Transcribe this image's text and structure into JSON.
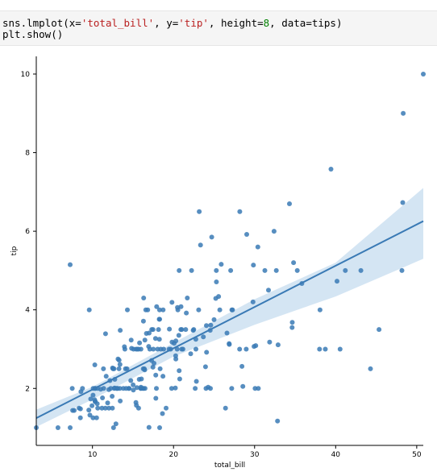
{
  "code_cell": {
    "line1": {
      "p1": "sns.lmplot(x=",
      "s1": "'total_bill'",
      "p2": ", y=",
      "s2": "'tip'",
      "p3": ", height=",
      "n1": "8",
      "p4": ", data=tips)"
    },
    "line2": "plt.show()"
  },
  "chart_data": {
    "type": "scatter",
    "xlabel": "total_bill",
    "ylabel": "tip",
    "xlim": [
      3.07,
      50.81
    ],
    "ylim": [
      0.55,
      10.45
    ],
    "xticks": [
      10,
      20,
      30,
      40,
      50
    ],
    "yticks": [
      2,
      4,
      6,
      8,
      10
    ],
    "grid": false,
    "colors": {
      "points": "#3a7ab5",
      "line": "#3a7ab5",
      "band": "#c6dcef"
    },
    "regression": {
      "x": [
        3.07,
        50.81
      ],
      "y": [
        1.245,
        6.257
      ]
    },
    "ci_band": {
      "x": [
        3.07,
        10,
        20,
        30,
        40,
        50.81
      ],
      "lower": [
        1.02,
        1.72,
        2.81,
        3.62,
        4.34,
        5.3
      ],
      "upper": [
        1.46,
        2.04,
        3.16,
        4.27,
        5.2,
        7.1
      ]
    },
    "points": [
      [
        3.07,
        1.0
      ],
      [
        5.75,
        1.0
      ],
      [
        7.25,
        1.0
      ],
      [
        7.25,
        5.15
      ],
      [
        7.51,
        2.0
      ],
      [
        7.56,
        1.44
      ],
      [
        7.74,
        1.44
      ],
      [
        8.35,
        1.5
      ],
      [
        8.51,
        1.25
      ],
      [
        8.52,
        1.48
      ],
      [
        8.58,
        1.92
      ],
      [
        8.77,
        2.0
      ],
      [
        9.55,
        1.45
      ],
      [
        9.6,
        4.0
      ],
      [
        9.68,
        1.32
      ],
      [
        9.78,
        1.73
      ],
      [
        9.94,
        1.56
      ],
      [
        10.07,
        1.25
      ],
      [
        10.07,
        1.83
      ],
      [
        10.09,
        2.0
      ],
      [
        10.27,
        1.71
      ],
      [
        10.29,
        2.6
      ],
      [
        10.33,
        1.67
      ],
      [
        10.33,
        2.0
      ],
      [
        10.34,
        1.66
      ],
      [
        10.34,
        2.0
      ],
      [
        10.51,
        1.25
      ],
      [
        10.59,
        1.61
      ],
      [
        10.63,
        2.0
      ],
      [
        10.65,
        1.5
      ],
      [
        11.02,
        1.98
      ],
      [
        11.17,
        1.5
      ],
      [
        11.24,
        1.76
      ],
      [
        11.35,
        2.5
      ],
      [
        11.38,
        2.0
      ],
      [
        11.59,
        1.5
      ],
      [
        11.61,
        3.39
      ],
      [
        11.69,
        2.31
      ],
      [
        11.87,
        1.63
      ],
      [
        12.02,
        1.97
      ],
      [
        12.03,
        1.5
      ],
      [
        12.16,
        2.2
      ],
      [
        12.26,
        2.0
      ],
      [
        12.43,
        1.8
      ],
      [
        12.46,
        1.5
      ],
      [
        12.48,
        2.52
      ],
      [
        12.54,
        2.5
      ],
      [
        12.6,
        1.0
      ],
      [
        12.66,
        2.5
      ],
      [
        12.69,
        2.0
      ],
      [
        12.74,
        2.01
      ],
      [
        12.76,
        2.23
      ],
      [
        12.9,
        1.1
      ],
      [
        13.0,
        2.0
      ],
      [
        13.03,
        2.0
      ],
      [
        13.13,
        2.0
      ],
      [
        13.16,
        2.75
      ],
      [
        13.27,
        2.5
      ],
      [
        13.28,
        2.72
      ],
      [
        13.37,
        2.0
      ],
      [
        13.39,
        2.61
      ],
      [
        13.42,
        1.68
      ],
      [
        13.42,
        3.48
      ],
      [
        13.81,
        2.0
      ],
      [
        13.94,
        3.06
      ],
      [
        14.0,
        3.0
      ],
      [
        14.07,
        2.5
      ],
      [
        14.15,
        2.0
      ],
      [
        14.26,
        2.5
      ],
      [
        14.31,
        4.0
      ],
      [
        14.48,
        2.0
      ],
      [
        14.52,
        2.0
      ],
      [
        14.73,
        2.2
      ],
      [
        14.78,
        3.23
      ],
      [
        14.83,
        3.02
      ],
      [
        15.01,
        2.09
      ],
      [
        15.04,
        1.96
      ],
      [
        15.06,
        3.0
      ],
      [
        15.36,
        1.64
      ],
      [
        15.38,
        3.0
      ],
      [
        15.42,
        1.57
      ],
      [
        15.48,
        2.02
      ],
      [
        15.53,
        3.0
      ],
      [
        15.69,
        1.5
      ],
      [
        15.69,
        3.0
      ],
      [
        15.77,
        2.23
      ],
      [
        15.81,
        3.16
      ],
      [
        15.95,
        2.0
      ],
      [
        15.98,
        2.03
      ],
      [
        15.98,
        3.0
      ],
      [
        16.0,
        2.0
      ],
      [
        16.04,
        2.24
      ],
      [
        16.21,
        2.0
      ],
      [
        16.27,
        2.5
      ],
      [
        16.29,
        3.71
      ],
      [
        16.31,
        2.0
      ],
      [
        16.32,
        4.3
      ],
      [
        16.4,
        2.5
      ],
      [
        16.45,
        2.47
      ],
      [
        16.47,
        3.23
      ],
      [
        16.49,
        2.0
      ],
      [
        16.58,
        4.0
      ],
      [
        16.66,
        3.4
      ],
      [
        16.82,
        4.0
      ],
      [
        16.93,
        3.07
      ],
      [
        16.97,
        1.01
      ],
      [
        16.99,
        3.41
      ],
      [
        17.07,
        3.0
      ],
      [
        17.29,
        2.71
      ],
      [
        17.31,
        3.5
      ],
      [
        17.46,
        2.54
      ],
      [
        17.47,
        3.5
      ],
      [
        17.51,
        3.0
      ],
      [
        17.59,
        2.64
      ],
      [
        17.78,
        3.27
      ],
      [
        17.81,
        2.34
      ],
      [
        17.82,
        1.75
      ],
      [
        17.89,
        2.0
      ],
      [
        17.92,
        4.08
      ],
      [
        18.04,
        3.0
      ],
      [
        18.15,
        3.5
      ],
      [
        18.24,
        3.76
      ],
      [
        18.26,
        3.25
      ],
      [
        18.28,
        4.0
      ],
      [
        18.29,
        3.76
      ],
      [
        18.29,
        1.0
      ],
      [
        18.35,
        2.5
      ],
      [
        18.43,
        3.0
      ],
      [
        18.64,
        1.36
      ],
      [
        18.69,
        2.31
      ],
      [
        18.71,
        4.0
      ],
      [
        18.78,
        3.0
      ],
      [
        19.08,
        1.5
      ],
      [
        19.44,
        3.0
      ],
      [
        19.49,
        3.51
      ],
      [
        19.65,
        3.0
      ],
      [
        19.77,
        2.0
      ],
      [
        19.81,
        4.19
      ],
      [
        19.82,
        3.18
      ],
      [
        20.08,
        3.15
      ],
      [
        20.23,
        2.01
      ],
      [
        20.27,
        2.83
      ],
      [
        20.29,
        2.75
      ],
      [
        20.29,
        3.21
      ],
      [
        20.45,
        3.0
      ],
      [
        20.49,
        4.06
      ],
      [
        20.53,
        4.0
      ],
      [
        20.65,
        3.35
      ],
      [
        20.69,
        5.0
      ],
      [
        20.69,
        2.45
      ],
      [
        20.76,
        2.24
      ],
      [
        20.9,
        3.5
      ],
      [
        20.92,
        4.08
      ],
      [
        21.01,
        3.5
      ],
      [
        21.01,
        3.0
      ],
      [
        21.16,
        3.0
      ],
      [
        21.5,
        3.5
      ],
      [
        21.58,
        3.92
      ],
      [
        21.7,
        4.3
      ],
      [
        22.12,
        2.88
      ],
      [
        22.23,
        5.0
      ],
      [
        22.42,
        3.48
      ],
      [
        22.49,
        3.5
      ],
      [
        22.67,
        2.0
      ],
      [
        22.75,
        3.25
      ],
      [
        22.76,
        3.0
      ],
      [
        22.82,
        2.18
      ],
      [
        23.1,
        4.0
      ],
      [
        23.17,
        6.5
      ],
      [
        23.33,
        5.65
      ],
      [
        23.68,
        3.31
      ],
      [
        23.95,
        2.55
      ],
      [
        24.01,
        2.0
      ],
      [
        24.06,
        3.6
      ],
      [
        24.08,
        2.92
      ],
      [
        24.27,
        2.03
      ],
      [
        24.52,
        3.48
      ],
      [
        24.55,
        2.0
      ],
      [
        24.59,
        3.61
      ],
      [
        24.71,
        5.85
      ],
      [
        25.0,
        3.75
      ],
      [
        25.21,
        4.29
      ],
      [
        25.28,
        5.0
      ],
      [
        25.29,
        4.71
      ],
      [
        25.56,
        4.34
      ],
      [
        25.71,
        4.0
      ],
      [
        25.89,
        5.16
      ],
      [
        26.41,
        1.5
      ],
      [
        26.59,
        3.41
      ],
      [
        26.86,
        3.14
      ],
      [
        26.88,
        3.12
      ],
      [
        27.05,
        5.0
      ],
      [
        27.18,
        2.0
      ],
      [
        27.2,
        4.0
      ],
      [
        27.28,
        4.0
      ],
      [
        28.15,
        3.0
      ],
      [
        28.17,
        6.5
      ],
      [
        28.44,
        2.56
      ],
      [
        28.55,
        2.05
      ],
      [
        28.97,
        3.0
      ],
      [
        29.03,
        5.92
      ],
      [
        29.8,
        4.2
      ],
      [
        29.85,
        5.14
      ],
      [
        29.93,
        3.07
      ],
      [
        30.06,
        2.0
      ],
      [
        30.14,
        3.09
      ],
      [
        30.4,
        5.6
      ],
      [
        30.46,
        2.0
      ],
      [
        31.27,
        5.0
      ],
      [
        31.71,
        4.5
      ],
      [
        31.85,
        3.18
      ],
      [
        32.4,
        6.0
      ],
      [
        32.68,
        5.0
      ],
      [
        32.83,
        1.17
      ],
      [
        32.9,
        3.11
      ],
      [
        34.3,
        6.7
      ],
      [
        34.63,
        3.55
      ],
      [
        34.65,
        3.68
      ],
      [
        34.81,
        5.2
      ],
      [
        35.26,
        5.0
      ],
      [
        35.83,
        4.67
      ],
      [
        38.01,
        3.0
      ],
      [
        38.07,
        4.0
      ],
      [
        38.73,
        3.0
      ],
      [
        39.42,
        7.58
      ],
      [
        40.17,
        4.73
      ],
      [
        40.55,
        3.0
      ],
      [
        41.19,
        5.0
      ],
      [
        43.11,
        5.0
      ],
      [
        44.3,
        2.5
      ],
      [
        45.35,
        3.5
      ],
      [
        48.17,
        5.0
      ],
      [
        48.27,
        6.73
      ],
      [
        48.33,
        9.0
      ],
      [
        50.81,
        10.0
      ]
    ]
  }
}
